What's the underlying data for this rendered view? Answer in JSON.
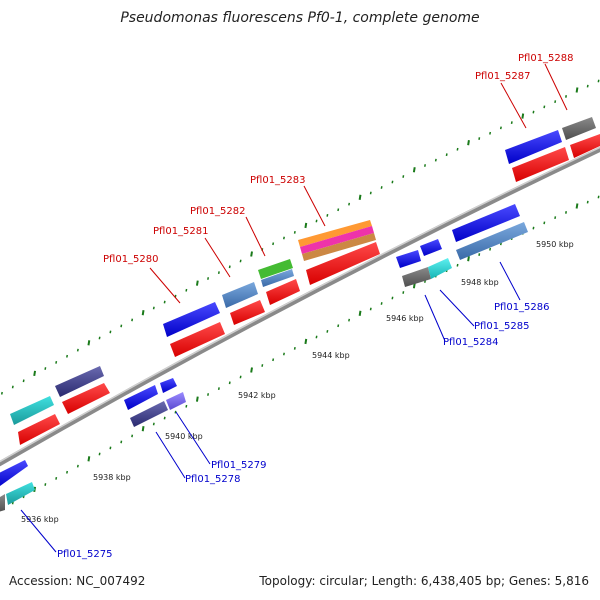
{
  "title": "Pseudomonas fluorescens Pf0-1, complete genome",
  "footer": {
    "accession": "Accession: NC_007492",
    "summary": "Topology: circular; Length: 6,438,405 bp; Genes: 5,816"
  },
  "colors": {
    "backbone": "#8a8a8a",
    "tick": "#1a7a1a",
    "label_top": "#cc0000",
    "label_bottom": "#0000cc"
  },
  "ticks": [
    "5936 kbp",
    "5938 kbp",
    "5940 kbp",
    "5942 kbp",
    "5944 kbp",
    "5946 kbp",
    "5948 kbp",
    "5950 kbp"
  ],
  "labels_top": [
    "Pfl01_5280",
    "Pfl01_5281",
    "Pfl01_5282",
    "Pfl01_5283",
    "Pfl01_5287",
    "Pfl01_5288"
  ],
  "labels_bottom": [
    "Pfl01_5275",
    "Pfl01_5278",
    "Pfl01_5279",
    "Pfl01_5284",
    "Pfl01_5285",
    "Pfl01_5286"
  ]
}
